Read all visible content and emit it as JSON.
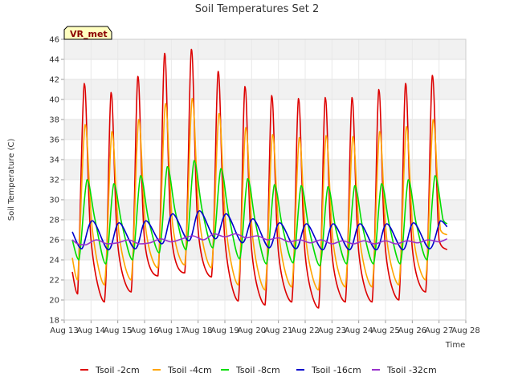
{
  "chart_data": {
    "type": "line",
    "title": "Soil Temperatures Set 2",
    "xlabel": "Time",
    "ylabel": "Soil Temperature (C)",
    "ylim": [
      18,
      46
    ],
    "yticks": [
      18,
      20,
      22,
      24,
      26,
      28,
      30,
      32,
      34,
      36,
      38,
      40,
      42,
      44,
      46
    ],
    "xlim": [
      13,
      28
    ],
    "xticks": [
      {
        "value": 13,
        "label": "Aug 13"
      },
      {
        "value": 14,
        "label": "Aug 14"
      },
      {
        "value": 15,
        "label": "Aug 15"
      },
      {
        "value": 16,
        "label": "Aug 16"
      },
      {
        "value": 17,
        "label": "Aug 17"
      },
      {
        "value": 18,
        "label": "Aug 18"
      },
      {
        "value": 19,
        "label": "Aug 19"
      },
      {
        "value": 20,
        "label": "Aug 20"
      },
      {
        "value": 21,
        "label": "Aug 21"
      },
      {
        "value": 22,
        "label": "Aug 22"
      },
      {
        "value": 23,
        "label": "Aug 23"
      },
      {
        "value": 24,
        "label": "Aug 24"
      },
      {
        "value": 25,
        "label": "Aug 25"
      },
      {
        "value": 26,
        "label": "Aug 26"
      },
      {
        "value": 27,
        "label": "Aug 27"
      },
      {
        "value": 28,
        "label": "Aug 28"
      }
    ],
    "grid": true,
    "legend_position": "bottom",
    "station_label": "VR_met",
    "series": [
      {
        "name": "Tsoil -2cm",
        "color": "#dd0000",
        "x": [
          13.3,
          13.5,
          13.75,
          14.0,
          14.5,
          14.75,
          15.0,
          15.5,
          15.75,
          16.0,
          16.5,
          16.75,
          17.0,
          17.5,
          17.75,
          18.0,
          18.5,
          18.75,
          19.0,
          19.5,
          19.75,
          20.0,
          20.5,
          20.75,
          21.0,
          21.5,
          21.75,
          22.0,
          22.5,
          22.75,
          23.0,
          23.5,
          23.75,
          24.0,
          24.5,
          24.75,
          25.0,
          25.5,
          25.75,
          26.0,
          26.5,
          26.75,
          27.0,
          27.3
        ],
        "y": [
          22.8,
          20.6,
          41.6,
          26.0,
          19.8,
          40.7,
          25.5,
          20.8,
          42.3,
          26.0,
          22.4,
          44.6,
          26.5,
          22.7,
          45.0,
          27.0,
          22.3,
          42.8,
          26.0,
          19.9,
          41.3,
          25.0,
          19.5,
          40.4,
          24.8,
          19.8,
          40.1,
          24.5,
          19.2,
          40.2,
          24.6,
          19.8,
          40.2,
          24.8,
          19.8,
          41.0,
          25.0,
          20.0,
          41.6,
          25.2,
          20.8,
          42.4,
          26.0,
          25.0
        ]
      },
      {
        "name": "Tsoil -4cm",
        "color": "#ffa500",
        "x": [
          13.3,
          13.5,
          13.78,
          14.05,
          14.5,
          14.78,
          15.05,
          15.5,
          15.78,
          16.05,
          16.5,
          16.78,
          17.05,
          17.5,
          17.78,
          18.05,
          18.5,
          18.78,
          19.05,
          19.5,
          19.78,
          20.05,
          20.5,
          20.78,
          21.05,
          21.5,
          21.78,
          22.05,
          22.5,
          22.78,
          23.05,
          23.5,
          23.78,
          24.05,
          24.5,
          24.78,
          25.05,
          25.5,
          25.78,
          26.05,
          26.5,
          26.78,
          27.05,
          27.3
        ],
        "y": [
          24.2,
          22.0,
          37.5,
          27.0,
          21.5,
          36.8,
          26.5,
          22.0,
          38.0,
          27.0,
          23.2,
          39.6,
          27.5,
          23.5,
          40.1,
          28.0,
          23.2,
          38.6,
          27.0,
          21.5,
          37.2,
          26.0,
          21.0,
          36.5,
          25.8,
          21.3,
          36.2,
          25.5,
          21.0,
          36.4,
          25.6,
          21.3,
          36.3,
          25.8,
          21.3,
          36.8,
          26.0,
          21.5,
          37.3,
          26.2,
          22.0,
          38.0,
          27.0,
          26.5
        ]
      },
      {
        "name": "Tsoil -8cm",
        "color": "#00dd00",
        "x": [
          13.3,
          13.55,
          13.85,
          14.15,
          14.55,
          14.85,
          15.15,
          15.55,
          15.85,
          16.15,
          16.55,
          16.85,
          17.15,
          17.55,
          17.85,
          18.15,
          18.55,
          18.85,
          19.15,
          19.55,
          19.85,
          20.15,
          20.55,
          20.85,
          21.15,
          21.55,
          21.85,
          22.15,
          22.55,
          22.85,
          23.15,
          23.55,
          23.85,
          24.15,
          24.55,
          24.85,
          25.15,
          25.55,
          25.85,
          26.15,
          26.55,
          26.85,
          27.15,
          27.3
        ],
        "y": [
          26.0,
          24.0,
          32.0,
          28.0,
          23.6,
          31.6,
          27.6,
          24.0,
          32.4,
          28.0,
          24.7,
          33.3,
          28.8,
          25.0,
          33.9,
          29.0,
          25.2,
          33.1,
          28.4,
          24.1,
          32.1,
          27.6,
          23.6,
          31.5,
          27.3,
          23.7,
          31.4,
          27.0,
          23.4,
          31.3,
          27.0,
          23.6,
          31.4,
          27.2,
          23.6,
          31.6,
          27.4,
          23.6,
          32.0,
          27.6,
          24.0,
          32.4,
          28.0,
          27.6
        ]
      },
      {
        "name": "Tsoil -16cm",
        "color": "#0000cc",
        "x": [
          13.3,
          13.65,
          14.05,
          14.65,
          15.05,
          15.65,
          16.05,
          16.65,
          17.05,
          17.65,
          18.05,
          18.65,
          19.05,
          19.65,
          20.05,
          20.65,
          21.05,
          21.65,
          22.05,
          22.65,
          23.05,
          23.65,
          24.05,
          24.65,
          25.05,
          25.65,
          26.05,
          26.65,
          27.05,
          27.3
        ],
        "y": [
          26.8,
          25.1,
          27.9,
          25.0,
          27.7,
          25.1,
          27.9,
          25.6,
          28.6,
          25.9,
          28.9,
          26.1,
          28.6,
          25.7,
          28.1,
          25.2,
          27.7,
          25.1,
          27.6,
          25.0,
          27.6,
          25.0,
          27.6,
          25.0,
          27.6,
          25.0,
          27.7,
          25.1,
          27.9,
          27.3
        ]
      },
      {
        "name": "Tsoil -32cm",
        "color": "#9932cc",
        "x": [
          13.3,
          13.5,
          13.8,
          14.2,
          14.6,
          15.0,
          15.4,
          15.8,
          16.2,
          16.6,
          17.0,
          17.4,
          17.8,
          18.2,
          18.6,
          19.0,
          19.4,
          19.8,
          20.2,
          20.6,
          21.0,
          21.4,
          21.8,
          22.2,
          22.6,
          23.0,
          23.4,
          23.8,
          24.2,
          24.6,
          25.0,
          25.4,
          25.8,
          26.2,
          26.6,
          27.0,
          27.3
        ],
        "y": [
          26.0,
          25.6,
          25.5,
          26.0,
          25.6,
          25.7,
          26.0,
          25.6,
          25.7,
          26.1,
          25.8,
          26.1,
          26.4,
          26.0,
          26.6,
          26.3,
          26.6,
          26.2,
          26.4,
          26.0,
          26.2,
          25.8,
          26.0,
          25.7,
          26.0,
          25.6,
          25.9,
          25.6,
          25.9,
          25.6,
          25.9,
          25.6,
          25.9,
          25.7,
          26.0,
          25.8,
          26.1
        ]
      }
    ]
  }
}
